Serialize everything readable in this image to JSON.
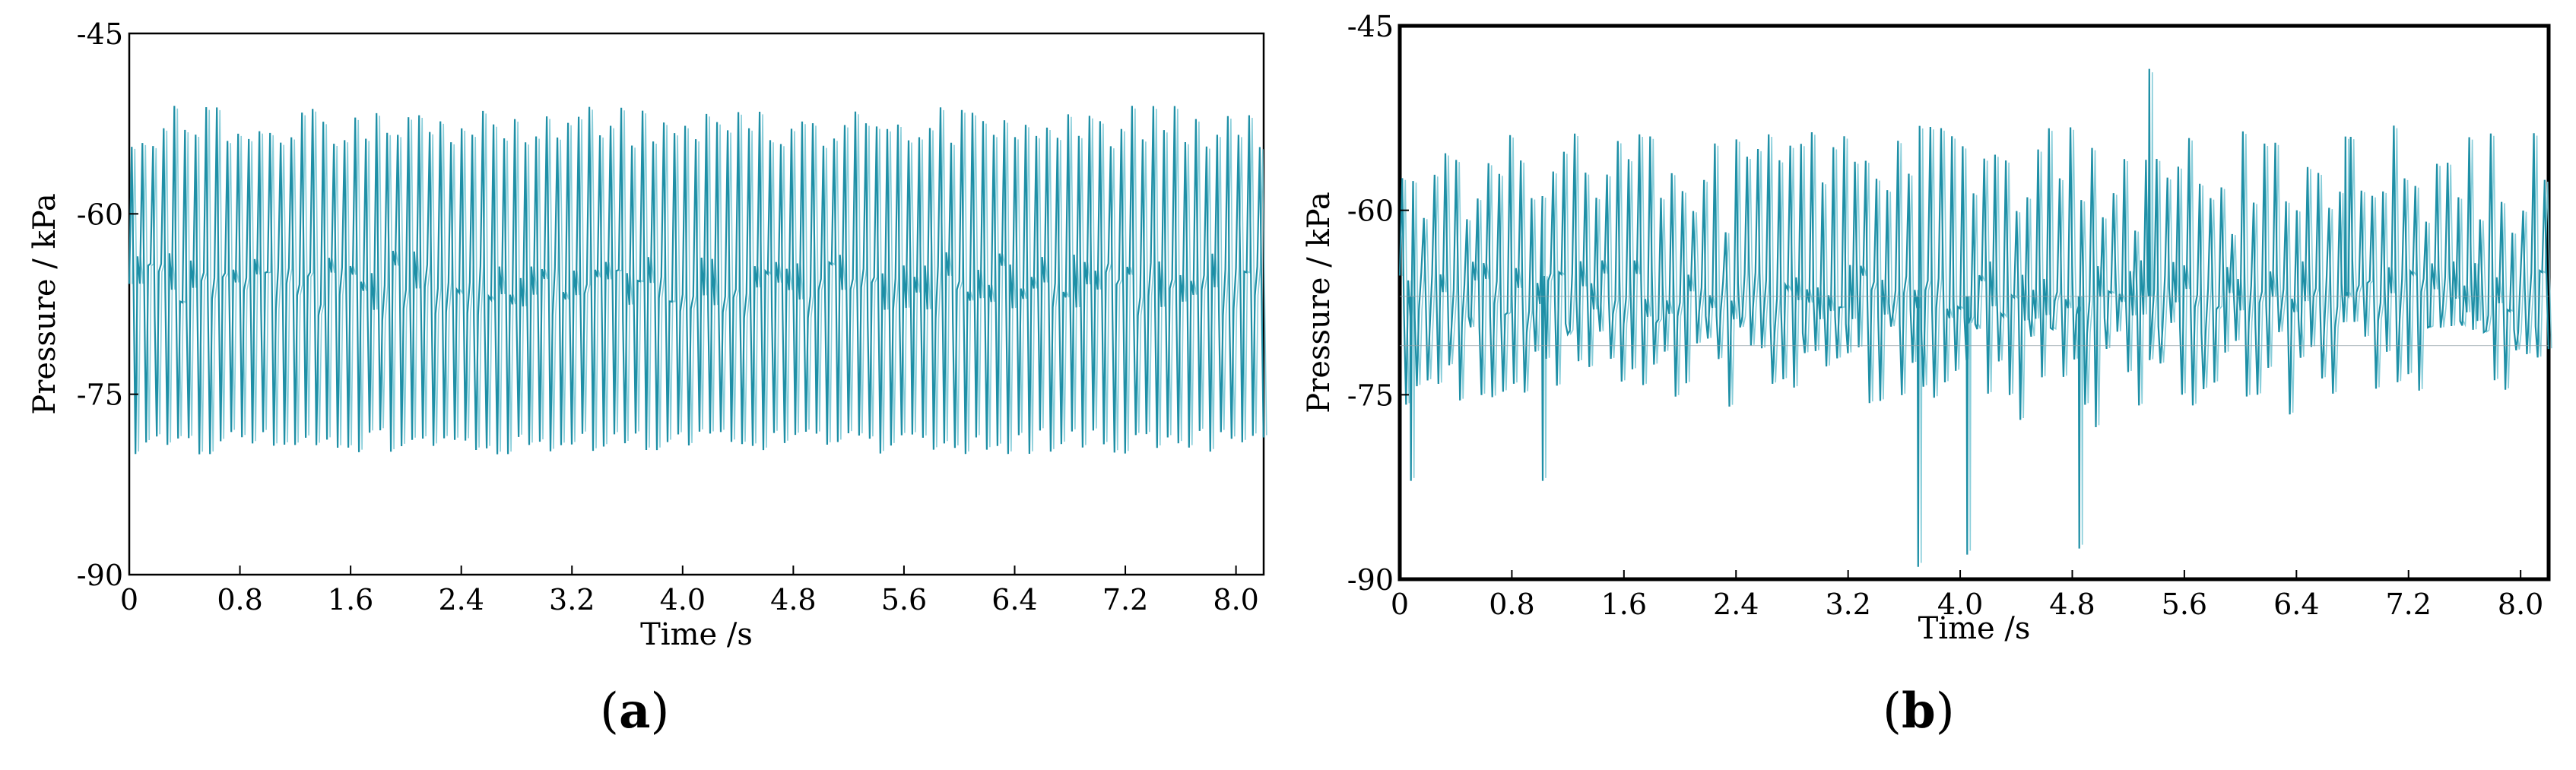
{
  "panels": [
    {
      "id": "a",
      "open": "(",
      "letter": "a",
      "close": ")"
    },
    {
      "id": "b",
      "open": "(",
      "letter": "b",
      "close": ")"
    }
  ],
  "colors": {
    "series_main": "#1e8fa6",
    "series_light": "#7cc9d6",
    "axis": "#000000",
    "background": "#ffffff"
  },
  "chart_data": [
    {
      "type": "line",
      "panel": "a",
      "title": "",
      "xlabel": "Time /s",
      "ylabel": "Pressure / kPa",
      "xlim": [
        0,
        8.2
      ],
      "ylim": [
        -90,
        -45
      ],
      "x_ticks": [
        0,
        0.8,
        1.6,
        2.4,
        3.2,
        4.0,
        4.8,
        5.6,
        6.4,
        7.2,
        8.0
      ],
      "x_tick_labels": [
        "0",
        "0.8",
        "1.6",
        "2.4",
        "3.2",
        "4.0",
        "4.8",
        "5.6",
        "6.4",
        "7.2",
        "8.0"
      ],
      "y_ticks": [
        -45,
        -60,
        -75,
        -90
      ],
      "y_tick_labels": [
        "-45",
        "-60",
        "-75",
        "-90"
      ],
      "grid": false,
      "series": [
        {
          "signal": "periodic pressure fluctuation",
          "mean": -66,
          "max_range": [
            -54.5,
            -51
          ],
          "min_range": [
            -80,
            -78
          ],
          "peaks_per_second": 13,
          "duration": 8.2
        }
      ]
    },
    {
      "type": "line",
      "panel": "b",
      "title": "",
      "xlabel": "Time /s",
      "ylabel": "Pressure / kPa",
      "xlim": [
        0,
        8.2
      ],
      "ylim": [
        -90,
        -45
      ],
      "x_ticks": [
        0,
        0.8,
        1.6,
        2.4,
        3.2,
        4.0,
        4.8,
        5.6,
        6.4,
        7.2,
        8.0
      ],
      "x_tick_labels": [
        "0",
        "0.8",
        "1.6",
        "2.4",
        "3.2",
        "4.0",
        "4.8",
        "5.6",
        "6.4",
        "7.2",
        "8.0"
      ],
      "y_ticks": [
        -45,
        -60,
        -75,
        -90
      ],
      "y_tick_labels": [
        "-45",
        "-60",
        "-75",
        "-90"
      ],
      "grid": false,
      "series": [
        {
          "signal": "irregular pressure fluctuation",
          "mean": -67,
          "max_range": [
            -61,
            -48
          ],
          "min_range": [
            -89,
            -72
          ],
          "peaks_per_second": 13,
          "duration": 8.2,
          "spikes": [
            {
              "x": 5.35,
              "y": -48.5
            },
            {
              "x": 3.7,
              "y": -89
            },
            {
              "x": 4.05,
              "y": -88
            },
            {
              "x": 4.85,
              "y": -87.5
            },
            {
              "x": 0.08,
              "y": -82
            },
            {
              "x": 1.02,
              "y": -82
            },
            {
              "x": 6.75,
              "y": -54
            }
          ]
        }
      ]
    }
  ]
}
